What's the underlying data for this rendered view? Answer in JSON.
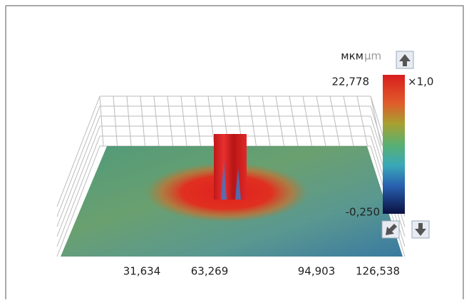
{
  "units": {
    "local": "мкм",
    "si": "µm"
  },
  "colorbar": {
    "max": "22,778",
    "min": "-0,250",
    "scale": "×1,0"
  },
  "x_axis": {
    "labels": [
      "31,634",
      "63,269",
      "94,903",
      "126,538"
    ]
  }
}
